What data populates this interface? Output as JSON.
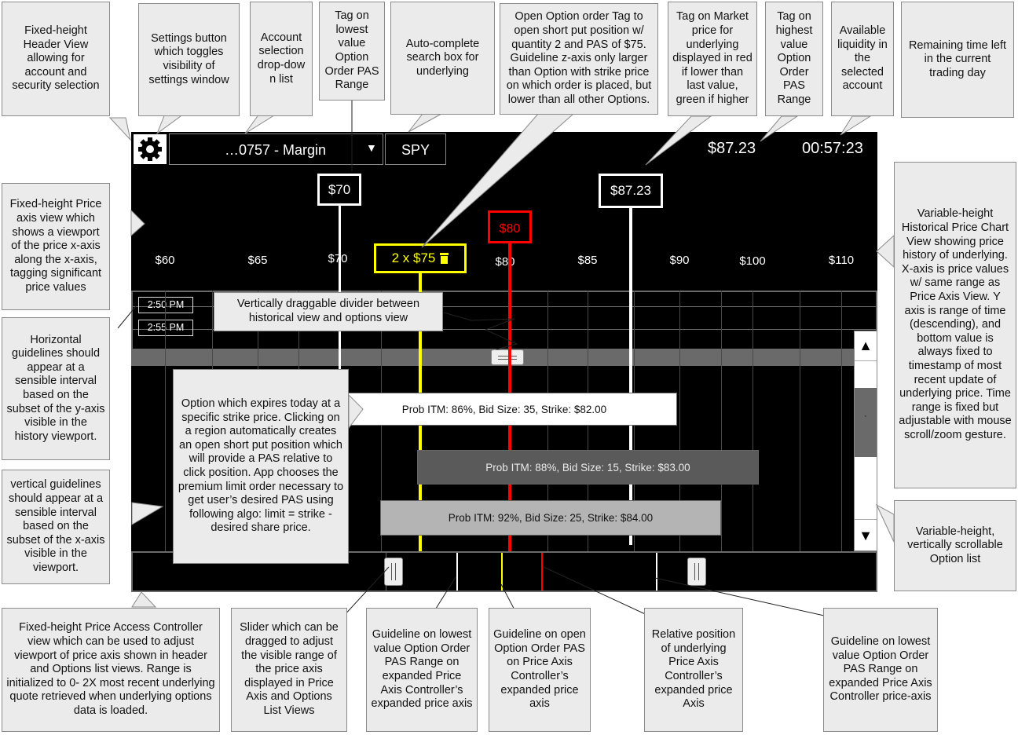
{
  "header": {
    "account_label": "…0757 - Margin",
    "dropdown_arrow": "▼",
    "symbol": "SPY",
    "market_price": "$87.23",
    "time_left": "00:57:23"
  },
  "price_axis": {
    "ticks": [
      "$60",
      "$65",
      "$70",
      "$80",
      "$85",
      "$90",
      "$100",
      "$110"
    ],
    "tag_low": "$70",
    "tag_open": "2 x $75",
    "tag_market": "$80",
    "tag_high": "$87.23"
  },
  "history": {
    "times": [
      "2:50 PM",
      "2:55 PM"
    ]
  },
  "options": [
    {
      "label": "Prob ITM: 86%, Bid Size: 35, Strike: $82.00"
    },
    {
      "label": "Prob ITM: 88%, Bid Size: 15, Strike: $83.00"
    },
    {
      "label": "Prob ITM: 92%, Bid Size: 25, Strike: $84.00"
    }
  ],
  "scroll": {
    "up": "▲",
    "down": "▼",
    "thumb": "`"
  },
  "colors": {
    "open_tag": "#ffff00",
    "market_tag": "#ff0000",
    "panel": "#000000"
  },
  "icons": {
    "settings": "gear-icon",
    "trash": "trash-icon"
  },
  "annotations": {
    "header_view": "Fixed-height Header View allowing for account and security selection",
    "settings_button": "Settings button which toggles visibility of settings window",
    "account_dropdown": "Account selection drop-dow n list",
    "tag_lowest": "Tag on lowest value Option Order PAS Range",
    "search_box": "Auto-complete search box for underlying",
    "open_order_tag": "Open Option order Tag to open short put position w/ quantity 2 and PAS of $75. Guideline z-axis only larger than Option with strike price on which order is placed, but lower than all other Options.",
    "market_tag": "Tag on Market price for underlying displayed in red if lower than last value, green if higher",
    "tag_highest": "Tag on highest value Option Order PAS Range",
    "liquidity": "Available liquidity in the selected account",
    "time_remaining": "Remaining time left in the current trading day",
    "price_axis_view": "Fixed-height Price axis view which shows a viewport of the price x-axis along the x-axis, tagging significant price values",
    "history_view": "Variable-height Historical Price Chart View showing price history of underlying. X-axis is price values w/ same range as Price Axis View. Y axis is range of time (descending), and bottom value is always fixed to timestamp of most recent update of underlying price. Time range is fixed but adjustable with mouse scroll/zoom gesture.",
    "divider": "Vertically draggable divider between historical view and options view",
    "horizontal_guidelines": "Horizontal guidelines should appear at a sensible interval based on the subset of the y-axis visible in the history viewport.",
    "vertical_guidelines": "vertical  guidelines should appear at a sensible interval based on the subset of the x-axis visible in the viewport.",
    "option_desc": "Option which expires today at a specific strike price. Clicking on a region automatically creates an open short put position which will provide a PAS relative to click position. App chooses the premium limit order necessary to get user’s desired PAS using following algo: limit = strike - desired share price.",
    "option_list": "Variable-height, vertically scrollable Option list",
    "controller_view": "Fixed-height Price Access Controller view which can be used to adjust viewport of price axis shown in header and Options list views. Range is initialized to 0- 2X most recent underlying quote retrieved when underlying options data is loaded.",
    "slider": "Slider which can be dragged to adjust the visible range of the price axis displayed in Price Axis and Options List Views",
    "guide_lowest": "Guideline on lowest value Option Order PAS Range on expanded Price Axis Controller’s expanded price axis",
    "guide_open": "Guideline on open Option Order PAS on Price Axis Controller’s expanded price axis",
    "relative_position": "Relative position of underlying Price Axis Controller’s expanded price Axis",
    "guide_lowest_right": "Guideline on lowest value Option Order PAS Range on expanded Price Axis Controller price-axis"
  }
}
